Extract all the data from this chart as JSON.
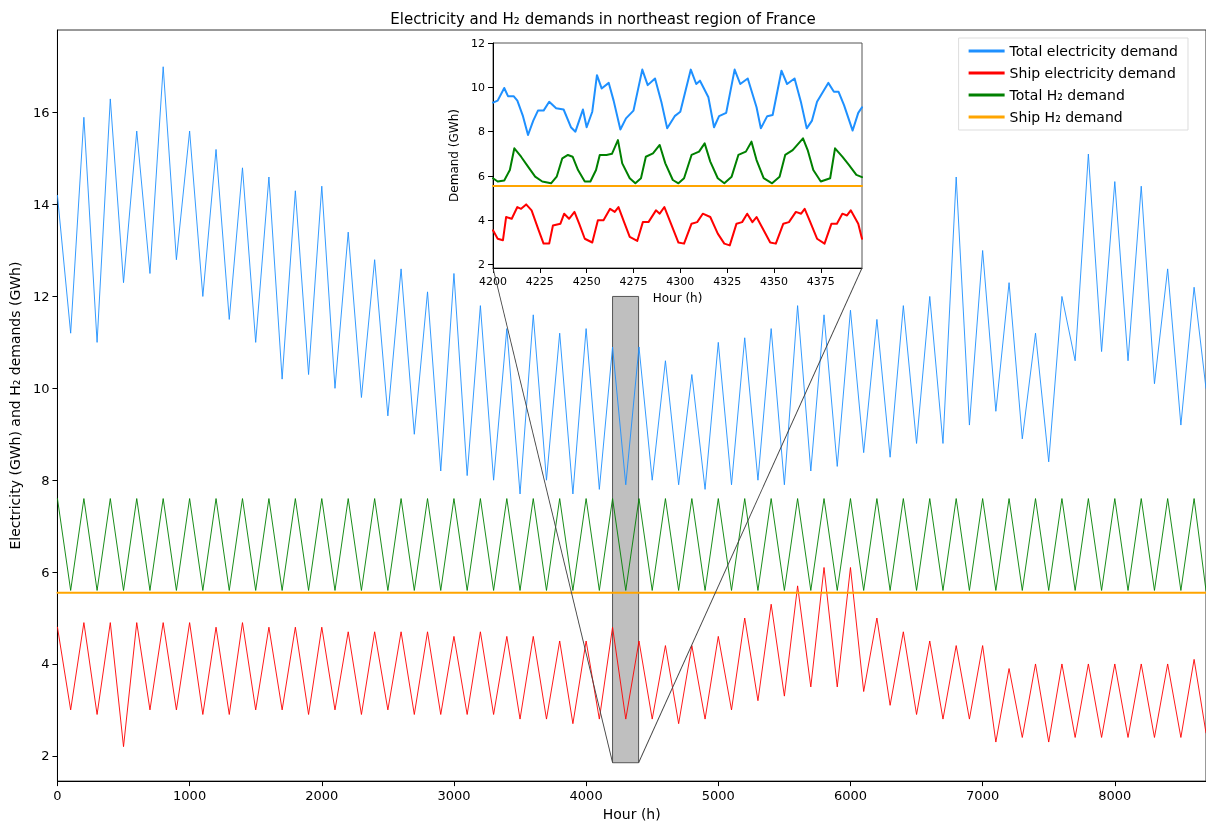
{
  "chart_data": [
    {
      "type": "line",
      "title": "Electricity and H₂ demands in northeast region of France",
      "xlabel": "Hour (h)",
      "ylabel": "Electricity (GWh) and H₂ demands (GWh)",
      "xlim": [
        0,
        8690
      ],
      "xticks": [
        0,
        1000,
        2000,
        3000,
        4000,
        5000,
        6000,
        7000,
        8000
      ],
      "ylim": [
        1.45,
        17.8
      ],
      "yticks": [
        2,
        4,
        6,
        8,
        10,
        12,
        14,
        16
      ],
      "grid": false,
      "legend": "top right",
      "line_style": "solid",
      "x": [
        0,
        100,
        200,
        300,
        400,
        500,
        600,
        700,
        800,
        900,
        1000,
        1100,
        1200,
        1300,
        1400,
        1500,
        1600,
        1700,
        1800,
        1900,
        2000,
        2100,
        2200,
        2300,
        2400,
        2500,
        2600,
        2700,
        2800,
        2900,
        3000,
        3100,
        3200,
        3300,
        3400,
        3500,
        3600,
        3700,
        3800,
        3900,
        4000,
        4100,
        4200,
        4300,
        4400,
        4500,
        4600,
        4700,
        4800,
        4900,
        5000,
        5100,
        5200,
        5300,
        5400,
        5500,
        5600,
        5700,
        5800,
        5900,
        6000,
        6100,
        6200,
        6300,
        6400,
        6500,
        6600,
        6700,
        6800,
        6900,
        7000,
        7100,
        7200,
        7300,
        7400,
        7500,
        7600,
        7700,
        7800,
        7900,
        8000,
        8100,
        8200,
        8300,
        8400,
        8500,
        8600,
        8690
      ],
      "bands": [
        {
          "axis": "x",
          "from": 4200,
          "to": 4397,
          "color": "#bfbfbf"
        }
      ],
      "series": [
        {
          "name": "Total electricity demand",
          "color": "#1e90ff",
          "values": [
            14.2,
            11.2,
            15.9,
            11.0,
            16.3,
            12.3,
            15.6,
            12.5,
            17.0,
            12.8,
            15.6,
            12.0,
            15.2,
            11.5,
            14.8,
            11.0,
            14.6,
            10.2,
            14.3,
            10.3,
            14.4,
            10.0,
            13.4,
            9.8,
            12.8,
            9.4,
            12.6,
            9.0,
            12.1,
            8.2,
            12.5,
            8.1,
            11.8,
            8.0,
            11.3,
            7.7,
            11.6,
            8.0,
            11.2,
            7.7,
            11.3,
            7.8,
            10.9,
            7.9,
            10.9,
            8.0,
            10.6,
            7.9,
            10.3,
            7.8,
            11.0,
            7.9,
            11.1,
            8.0,
            11.3,
            7.9,
            11.8,
            8.2,
            11.6,
            8.3,
            11.7,
            8.6,
            11.5,
            8.5,
            11.8,
            8.8,
            12.0,
            8.8,
            14.6,
            9.2,
            13.0,
            9.5,
            12.3,
            8.9,
            11.2,
            8.4,
            12.0,
            10.6,
            15.1,
            10.8,
            14.5,
            10.6,
            14.4,
            10.1,
            12.6,
            9.2,
            12.2,
            10.0
          ]
        },
        {
          "name": "Ship electricity demand",
          "color": "#ff0000",
          "values": [
            4.8,
            3.0,
            4.9,
            2.9,
            4.9,
            2.2,
            4.9,
            3.0,
            4.9,
            3.0,
            4.9,
            2.9,
            4.8,
            2.9,
            4.9,
            3.0,
            4.8,
            3.0,
            4.8,
            2.9,
            4.8,
            3.0,
            4.7,
            2.9,
            4.7,
            3.0,
            4.7,
            2.9,
            4.7,
            2.9,
            4.6,
            2.9,
            4.7,
            2.9,
            4.6,
            2.8,
            4.6,
            2.8,
            4.5,
            2.7,
            4.5,
            2.8,
            4.8,
            2.8,
            4.5,
            2.8,
            4.4,
            2.7,
            4.4,
            2.8,
            4.6,
            3.0,
            5.0,
            3.2,
            5.3,
            3.3,
            5.7,
            3.5,
            6.1,
            3.5,
            6.1,
            3.4,
            5.0,
            3.1,
            4.7,
            2.9,
            4.5,
            2.8,
            4.4,
            2.8,
            4.4,
            2.3,
            3.9,
            2.4,
            4.0,
            2.3,
            4.0,
            2.4,
            4.0,
            2.4,
            4.0,
            2.4,
            4.0,
            2.4,
            4.0,
            2.4,
            4.1,
            2.5
          ]
        },
        {
          "name": "Total H₂ demand",
          "color": "#008000",
          "values": [
            7.6,
            5.6,
            7.6,
            5.6,
            7.6,
            5.6,
            7.6,
            5.6,
            7.6,
            5.6,
            7.6,
            5.6,
            7.6,
            5.6,
            7.6,
            5.6,
            7.6,
            5.6,
            7.6,
            5.6,
            7.6,
            5.6,
            7.6,
            5.6,
            7.6,
            5.6,
            7.6,
            5.6,
            7.6,
            5.6,
            7.6,
            5.6,
            7.6,
            5.6,
            7.6,
            5.6,
            7.6,
            5.6,
            7.6,
            5.6,
            7.6,
            5.6,
            7.6,
            5.6,
            7.6,
            5.6,
            7.6,
            5.6,
            7.6,
            5.6,
            7.6,
            5.6,
            7.6,
            5.6,
            7.6,
            5.6,
            7.6,
            5.6,
            7.6,
            5.6,
            7.6,
            5.6,
            7.6,
            5.6,
            7.6,
            5.6,
            7.6,
            5.6,
            7.6,
            5.6,
            7.6,
            5.6,
            7.6,
            5.6,
            7.6,
            5.6,
            7.6,
            5.6,
            7.6,
            5.6,
            7.6,
            5.6,
            7.6,
            5.6,
            7.6,
            5.6,
            7.6,
            5.6
          ]
        },
        {
          "name": "Ship H₂ demand",
          "color": "#ffa500",
          "x": [
            0,
            8690
          ],
          "values": [
            5.55,
            5.55
          ]
        }
      ]
    },
    {
      "type": "line",
      "xlabel": "Hour (h)",
      "ylabel": "Demand (GWh)",
      "xlim": [
        4200,
        4397
      ],
      "xticks": [
        4200,
        4225,
        4250,
        4275,
        4300,
        4325,
        4350,
        4375
      ],
      "ylim": [
        1.85,
        12
      ],
      "yticks": [
        2,
        4,
        6,
        8,
        10,
        12
      ],
      "grid": false,
      "line_style": "solid",
      "series": [
        {
          "color": "#1e90ff",
          "x": [
            4200,
            4202.5,
            4206,
            4208,
            4211,
            4213,
            4216,
            4218.7,
            4221.5,
            4224,
            4227,
            4230,
            4233.7,
            4237.7,
            4241.6,
            4244,
            4246,
            4248,
            4250,
            4253,
            4255.5,
            4258,
            4261.8,
            4264.4,
            4268,
            4271,
            4275,
            4279.7,
            4282.6,
            4286.5,
            4290,
            4293,
            4297,
            4300,
            4305.6,
            4308.5,
            4310.5,
            4315,
            4318,
            4320.7,
            4324.5,
            4329,
            4332,
            4336,
            4340.7,
            4343,
            4346.4,
            4349.3,
            4354,
            4357,
            4361,
            4364.5,
            4367.5,
            4370.3,
            4373,
            4379,
            4382,
            4384.5,
            4387.4,
            4392,
            4395,
            4397
          ],
          "values": [
            9.31,
            9.4,
            9.97,
            9.6,
            9.6,
            9.4,
            8.7,
            7.85,
            8.5,
            8.95,
            8.95,
            9.35,
            9.06,
            9.0,
            8.2,
            8.0,
            8.5,
            9.0,
            8.2,
            8.9,
            10.55,
            9.95,
            10.2,
            9.4,
            8.1,
            8.6,
            8.95,
            10.8,
            10.1,
            10.4,
            9.3,
            8.15,
            8.7,
            8.9,
            10.8,
            10.15,
            10.3,
            9.55,
            8.2,
            8.7,
            8.85,
            10.8,
            10.15,
            10.4,
            9.1,
            8.15,
            8.7,
            8.75,
            10.75,
            10.15,
            10.4,
            9.3,
            8.15,
            8.5,
            9.35,
            10.2,
            9.8,
            9.8,
            9.2,
            8.05,
            8.85,
            9.1
          ]
        },
        {
          "color": "#008000",
          "x": [
            4200,
            4202.5,
            4206,
            4209,
            4211.4,
            4215,
            4218.7,
            4222.5,
            4226.3,
            4231,
            4234,
            4237,
            4240,
            4242.5,
            4245.4,
            4249,
            4252,
            4255,
            4257,
            4260.6,
            4263.5,
            4266.7,
            4269,
            4273,
            4276,
            4279,
            4281.6,
            4285.4,
            4289,
            4292,
            4296,
            4299,
            4302,
            4306,
            4310,
            4313,
            4316,
            4320,
            4323.5,
            4327.4,
            4331,
            4335,
            4338,
            4340.7,
            4344.5,
            4349,
            4353,
            4356,
            4360,
            4365.5,
            4368,
            4371,
            4375,
            4380,
            4382.6,
            4386.5,
            4390,
            4394,
            4397
          ],
          "values": [
            5.9,
            5.75,
            5.8,
            6.27,
            7.25,
            6.87,
            6.42,
            5.97,
            5.75,
            5.67,
            5.97,
            6.8,
            6.95,
            6.87,
            6.27,
            5.75,
            5.75,
            6.27,
            6.95,
            6.95,
            7.0,
            7.62,
            6.57,
            5.9,
            5.67,
            5.9,
            6.87,
            7.02,
            7.4,
            6.57,
            5.82,
            5.67,
            5.9,
            6.95,
            7.1,
            7.47,
            6.65,
            5.9,
            5.67,
            5.97,
            6.95,
            7.1,
            7.55,
            6.72,
            5.9,
            5.67,
            5.97,
            6.95,
            7.17,
            7.7,
            7.17,
            6.27,
            5.75,
            5.9,
            7.25,
            6.87,
            6.5,
            6.05,
            5.95
          ]
        },
        {
          "color": "#ffa500",
          "x": [
            4200,
            4397
          ],
          "values": [
            5.55,
            5.55
          ]
        },
        {
          "color": "#ff0000",
          "x": [
            4200,
            4202.5,
            4205.3,
            4207,
            4210,
            4213,
            4215,
            4217.7,
            4220.6,
            4224.4,
            4227,
            4230,
            4232,
            4236,
            4238,
            4240.6,
            4243.5,
            4246,
            4249,
            4253,
            4256,
            4259,
            4262.5,
            4265,
            4267,
            4270,
            4273,
            4277,
            4280,
            4283,
            4287,
            4289,
            4291.5,
            4295,
            4299,
            4302,
            4306,
            4309,
            4312,
            4316,
            4320,
            4323.5,
            4326.4,
            4330,
            4333,
            4335.7,
            4338.5,
            4340.7,
            4344.5,
            4348,
            4351,
            4355,
            4358,
            4361.7,
            4364.5,
            4366.4,
            4369,
            4373,
            4377,
            4380.7,
            4383.6,
            4386.5,
            4389,
            4391,
            4395,
            4397
          ],
          "values": [
            3.55,
            3.17,
            3.1,
            4.15,
            4.07,
            4.6,
            4.52,
            4.72,
            4.45,
            3.55,
            2.95,
            2.95,
            3.77,
            3.85,
            4.3,
            4.07,
            4.38,
            3.85,
            3.17,
            3.0,
            4.0,
            4.0,
            4.52,
            4.38,
            4.6,
            3.92,
            3.25,
            3.07,
            3.92,
            3.92,
            4.45,
            4.3,
            4.6,
            3.85,
            3.0,
            2.95,
            3.85,
            3.92,
            4.3,
            4.15,
            3.4,
            2.95,
            2.87,
            3.85,
            3.92,
            4.3,
            3.92,
            4.15,
            3.55,
            3.0,
            2.95,
            3.85,
            3.92,
            4.38,
            4.3,
            4.52,
            4.0,
            3.17,
            2.95,
            3.85,
            3.85,
            4.3,
            4.22,
            4.45,
            3.85,
            3.17
          ]
        }
      ]
    }
  ]
}
